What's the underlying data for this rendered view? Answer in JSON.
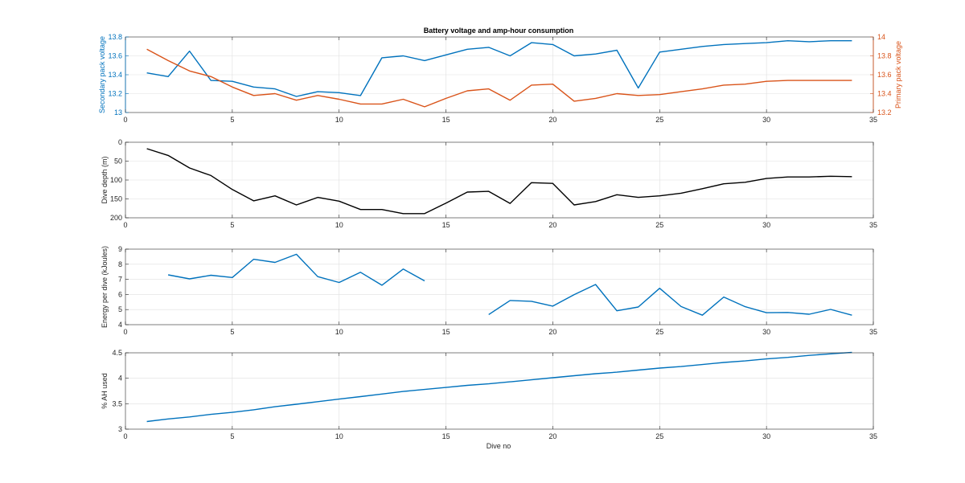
{
  "colors": {
    "blue": "#0072BD",
    "orange": "#D95319",
    "black": "#000000",
    "axis": "#262626",
    "grid": "#dfdfdf"
  },
  "chart_data": [
    {
      "type": "line",
      "title": "Battery voltage and amp-hour consumption",
      "xlim": [
        0,
        35
      ],
      "xticks": [
        0,
        5,
        10,
        15,
        20,
        25,
        30,
        35
      ],
      "grid": true,
      "left_axis": {
        "label": "Secondary pack voltage",
        "ylim": [
          13,
          13.8
        ],
        "ticks": [
          13,
          13.2,
          13.4,
          13.6,
          13.8
        ],
        "tick_labels": [
          "13",
          "13.2",
          "13.4",
          "13.6",
          "13.8"
        ],
        "color": "#0072BD"
      },
      "right_axis": {
        "label": "Primary pack voltage",
        "ylim": [
          13.2,
          14
        ],
        "ticks": [
          13.2,
          13.4,
          13.6,
          13.8,
          14
        ],
        "tick_labels": [
          "13.2",
          "13.4",
          "13.6",
          "13.8",
          "14"
        ],
        "color": "#D95319"
      },
      "series": [
        {
          "axis": "left",
          "color": "#0072BD",
          "x": [
            1,
            2,
            3,
            4,
            5,
            6,
            7,
            8,
            9,
            10,
            11,
            12,
            13,
            14,
            15,
            16,
            17,
            18,
            19,
            20,
            21,
            22,
            23,
            24,
            25,
            26,
            27,
            28,
            29,
            30,
            31,
            32,
            33,
            34
          ],
          "y": [
            13.42,
            13.38,
            13.65,
            13.34,
            13.33,
            13.27,
            13.25,
            13.17,
            13.22,
            13.21,
            13.18,
            13.58,
            13.6,
            13.55,
            13.61,
            13.67,
            13.69,
            13.6,
            13.74,
            13.72,
            13.6,
            13.62,
            13.66,
            13.26,
            13.64,
            13.67,
            13.7,
            13.72,
            13.73,
            13.74,
            13.76,
            13.75,
            13.76,
            13.76
          ]
        },
        {
          "axis": "right",
          "color": "#D95319",
          "x": [
            1,
            2,
            3,
            4,
            5,
            6,
            7,
            8,
            9,
            10,
            11,
            12,
            13,
            14,
            15,
            16,
            17,
            18,
            19,
            20,
            21,
            22,
            23,
            24,
            25,
            26,
            27,
            28,
            29,
            30,
            31,
            32,
            33,
            34
          ],
          "y": [
            13.87,
            13.75,
            13.64,
            13.58,
            13.47,
            13.38,
            13.4,
            13.33,
            13.38,
            13.34,
            13.29,
            13.29,
            13.34,
            13.26,
            13.35,
            13.43,
            13.45,
            13.33,
            13.49,
            13.5,
            13.32,
            13.35,
            13.4,
            13.38,
            13.39,
            13.42,
            13.45,
            13.49,
            13.5,
            13.53,
            13.54,
            13.54,
            13.54,
            13.54
          ]
        }
      ]
    },
    {
      "type": "line",
      "ylabel": "Dive depth (m)",
      "xlim": [
        0,
        35
      ],
      "xticks": [
        0,
        5,
        10,
        15,
        20,
        25,
        30,
        35
      ],
      "ylim": [
        0,
        200
      ],
      "y_reversed": true,
      "yticks": [
        0,
        50,
        100,
        150,
        200
      ],
      "ytick_labels": [
        "0",
        "50",
        "100",
        "150",
        "200"
      ],
      "grid": true,
      "series": [
        {
          "color": "#000000",
          "x": [
            1,
            2,
            3,
            4,
            5,
            6,
            7,
            8,
            9,
            10,
            11,
            12,
            13,
            14,
            15,
            16,
            17,
            18,
            19,
            20,
            21,
            22,
            23,
            24,
            25,
            26,
            27,
            28,
            29,
            30,
            31,
            32,
            33,
            34
          ],
          "y": [
            17,
            35,
            68,
            88,
            125,
            155,
            142,
            166,
            146,
            156,
            178,
            178,
            189,
            189,
            161,
            132,
            130,
            162,
            107,
            109,
            166,
            157,
            139,
            146,
            142,
            135,
            123,
            110,
            106,
            96,
            92,
            92,
            90,
            91
          ]
        }
      ]
    },
    {
      "type": "line",
      "ylabel": "Energy per dive (kJoules)",
      "xlim": [
        0,
        35
      ],
      "xticks": [
        0,
        5,
        10,
        15,
        20,
        25,
        30,
        35
      ],
      "ylim": [
        4,
        9
      ],
      "yticks": [
        4,
        5,
        6,
        7,
        8,
        9
      ],
      "ytick_labels": [
        "4",
        "5",
        "6",
        "7",
        "8",
        "9"
      ],
      "grid": true,
      "series": [
        {
          "color": "#0072BD",
          "segments": [
            {
              "x": [
                2,
                3,
                4,
                5,
                6,
                7,
                8,
                9,
                10,
                11,
                12,
                13,
                14
              ],
              "y": [
                7.3,
                7.03,
                7.27,
                7.12,
                8.33,
                8.12,
                8.66,
                7.18,
                6.79,
                7.47,
                6.61,
                7.68,
                6.9
              ]
            },
            {
              "x": [
                17,
                18,
                19,
                20,
                21,
                22,
                23,
                24,
                25,
                26,
                27,
                28,
                29,
                30,
                31,
                32,
                33,
                34
              ],
              "y": [
                4.67,
                5.6,
                5.55,
                5.23,
                5.99,
                6.66,
                4.92,
                5.17,
                6.41,
                5.2,
                4.63,
                5.83,
                5.19,
                4.79,
                4.81,
                4.69,
                5.01,
                4.63
              ]
            }
          ]
        }
      ]
    },
    {
      "type": "line",
      "ylabel": "% AH used",
      "xlabel": "Dive no",
      "xlim": [
        0,
        35
      ],
      "xticks": [
        0,
        5,
        10,
        15,
        20,
        25,
        30,
        35
      ],
      "ylim": [
        3,
        4.5
      ],
      "yticks": [
        3,
        3.5,
        4,
        4.5
      ],
      "ytick_labels": [
        "3",
        "3.5",
        "4",
        "4.5"
      ],
      "grid": true,
      "series": [
        {
          "color": "#0072BD",
          "x": [
            1,
            2,
            3,
            4,
            5,
            6,
            7,
            8,
            9,
            10,
            11,
            12,
            13,
            14,
            15,
            16,
            17,
            18,
            19,
            20,
            21,
            22,
            23,
            24,
            25,
            26,
            27,
            28,
            29,
            30,
            31,
            32,
            33,
            34
          ],
          "y": [
            3.15,
            3.2,
            3.24,
            3.29,
            3.33,
            3.38,
            3.44,
            3.49,
            3.54,
            3.59,
            3.64,
            3.69,
            3.74,
            3.78,
            3.82,
            3.86,
            3.89,
            3.93,
            3.97,
            4.01,
            4.05,
            4.09,
            4.12,
            4.16,
            4.2,
            4.23,
            4.27,
            4.31,
            4.34,
            4.38,
            4.41,
            4.45,
            4.48,
            4.51
          ]
        }
      ]
    }
  ]
}
